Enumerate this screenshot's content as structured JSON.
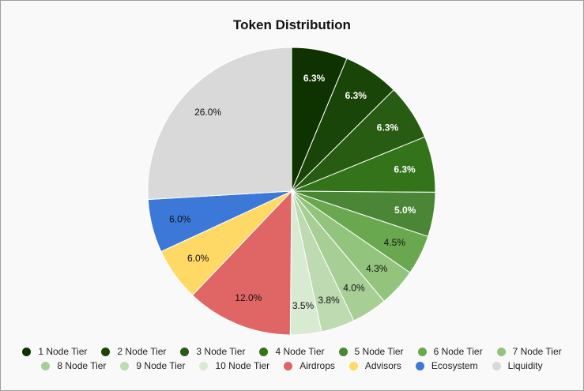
{
  "chart_data": {
    "type": "pie",
    "title": "Token Distribution",
    "legend_position": "bottom",
    "slices": [
      {
        "label": "1 Node Tier",
        "value": 6.3,
        "label_text": "6.3%",
        "color": "#0f3300",
        "label_color": "#ffffff",
        "bold": true
      },
      {
        "label": "2 Node Tier",
        "value": 6.3,
        "label_text": "6.3%",
        "color": "#1a4509",
        "label_color": "#ffffff",
        "bold": true
      },
      {
        "label": "3 Node Tier",
        "value": 6.3,
        "label_text": "6.3%",
        "color": "#275c12",
        "label_color": "#ffffff",
        "bold": true
      },
      {
        "label": "4 Node Tier",
        "value": 6.3,
        "label_text": "6.3%",
        "color": "#33731a",
        "label_color": "#ffffff",
        "bold": true
      },
      {
        "label": "5 Node Tier",
        "value": 5.0,
        "label_text": "5.0%",
        "color": "#4b8637",
        "label_color": "#ffffff",
        "bold": true
      },
      {
        "label": "6 Node Tier",
        "value": 4.5,
        "label_text": "4.5%",
        "color": "#6aa84f",
        "label_color": "#111111",
        "bold": false
      },
      {
        "label": "7 Node Tier",
        "value": 4.3,
        "label_text": "4.3%",
        "color": "#93c47d",
        "label_color": "#111111",
        "bold": false
      },
      {
        "label": "8 Node Tier",
        "value": 4.0,
        "label_text": "4.0%",
        "color": "#a7cf95",
        "label_color": "#111111",
        "bold": false
      },
      {
        "label": "9 Node Tier",
        "value": 3.8,
        "label_text": "3.8%",
        "color": "#bddab0",
        "label_color": "#111111",
        "bold": false
      },
      {
        "label": "10 Node Tier",
        "value": 3.5,
        "label_text": "3.5%",
        "color": "#d9ead3",
        "label_color": "#111111",
        "bold": false
      },
      {
        "label": "Airdrops",
        "value": 12.0,
        "label_text": "12.0%",
        "color": "#e06666",
        "label_color": "#111111",
        "bold": false
      },
      {
        "label": "Advisors",
        "value": 6.0,
        "label_text": "6.0%",
        "color": "#ffd966",
        "label_color": "#111111",
        "bold": false
      },
      {
        "label": "Ecosystem",
        "value": 6.0,
        "label_text": "6.0%",
        "color": "#3c78d8",
        "label_color": "#111111",
        "bold": false
      },
      {
        "label": "Liquidity",
        "value": 26.0,
        "label_text": "26.0%",
        "color": "#d9d9d9",
        "label_color": "#111111",
        "bold": false
      }
    ]
  }
}
